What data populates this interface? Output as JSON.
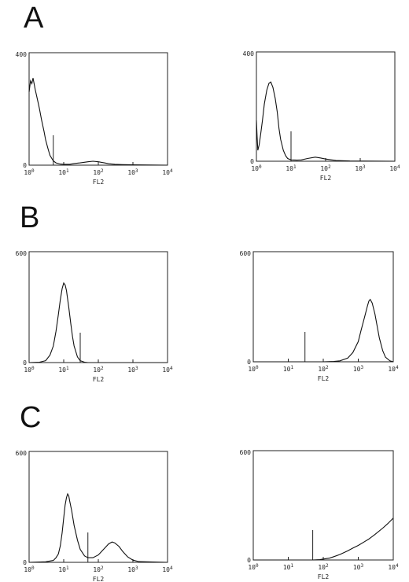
{
  "panels": [
    {
      "letter": "A"
    },
    {
      "letter": "B"
    },
    {
      "letter": "C"
    }
  ],
  "chart_data": [
    {
      "type": "line",
      "panel": "A",
      "position": "left",
      "xlabel": "FL2",
      "xscale": "log",
      "xlim": [
        1,
        10000
      ],
      "ylim": [
        0,
        400
      ],
      "y_ticks": [
        "0",
        "400"
      ],
      "x_ticks": [
        "10^0",
        "10^1",
        "10^2",
        "10^3",
        "10^4"
      ],
      "marker_x": 5,
      "x": [
        1,
        1.1,
        1.2,
        1.3,
        1.5,
        1.7,
        2,
        2.3,
        2.7,
        3,
        3.5,
        4,
        5,
        6,
        8,
        10,
        15,
        20,
        30,
        50,
        70,
        100,
        150,
        200,
        300,
        500,
        1000,
        10000
      ],
      "y": [
        260,
        300,
        290,
        310,
        270,
        240,
        200,
        160,
        120,
        90,
        60,
        35,
        15,
        8,
        4,
        3,
        3,
        6,
        8,
        12,
        14,
        12,
        8,
        5,
        3,
        2,
        1,
        0
      ]
    },
    {
      "type": "line",
      "panel": "A",
      "position": "right",
      "xlabel": "FL2",
      "xscale": "log",
      "xlim": [
        1,
        10000
      ],
      "ylim": [
        0,
        400
      ],
      "y_ticks": [
        "0",
        "400"
      ],
      "x_ticks": [
        "10^0",
        "10^1",
        "10^2",
        "10^3",
        "10^4"
      ],
      "marker_x": 10,
      "x": [
        1,
        1.05,
        1.1,
        1.2,
        1.3,
        1.5,
        1.7,
        2,
        2.3,
        2.6,
        3,
        3.5,
        4,
        4.5,
        5,
        6,
        7,
        8,
        10,
        15,
        20,
        30,
        50,
        70,
        100,
        150,
        200,
        500,
        10000
      ],
      "y": [
        150,
        90,
        40,
        60,
        90,
        150,
        210,
        260,
        285,
        290,
        270,
        230,
        180,
        120,
        80,
        40,
        20,
        10,
        5,
        4,
        5,
        10,
        15,
        12,
        8,
        5,
        3,
        1,
        0
      ]
    },
    {
      "type": "line",
      "panel": "B",
      "position": "left",
      "xlabel": "FL2",
      "xscale": "log",
      "xlim": [
        1,
        10000
      ],
      "ylim": [
        0,
        600
      ],
      "y_ticks": [
        "0",
        "600"
      ],
      "x_ticks": [
        "10^0",
        "10^1",
        "10^2",
        "10^3",
        "10^4"
      ],
      "marker_x": 30,
      "x": [
        1,
        2,
        3,
        4,
        5,
        6,
        7,
        8,
        9,
        10,
        11,
        12,
        14,
        16,
        18,
        20,
        25,
        30,
        40,
        50,
        100,
        10000
      ],
      "y": [
        0,
        2,
        10,
        40,
        90,
        170,
        260,
        340,
        400,
        430,
        420,
        390,
        300,
        210,
        140,
        90,
        30,
        10,
        2,
        0,
        0,
        0
      ]
    },
    {
      "type": "line",
      "panel": "B",
      "position": "right",
      "xlabel": "FL2",
      "xscale": "log",
      "xlim": [
        1,
        10000
      ],
      "ylim": [
        0,
        600
      ],
      "y_ticks": [
        "0",
        "600"
      ],
      "x_ticks": [
        "10^0",
        "10^1",
        "10^2",
        "10^3",
        "10^4"
      ],
      "marker_x": 30,
      "x": [
        1,
        100,
        200,
        300,
        500,
        700,
        1000,
        1200,
        1500,
        1800,
        2000,
        2200,
        2500,
        3000,
        3500,
        4000,
        5000,
        6000,
        8000,
        10000
      ],
      "y": [
        0,
        0,
        2,
        5,
        20,
        50,
        110,
        170,
        240,
        300,
        330,
        340,
        320,
        260,
        190,
        130,
        60,
        25,
        5,
        0
      ]
    },
    {
      "type": "line",
      "panel": "C",
      "position": "left",
      "xlabel": "FL2",
      "xscale": "log",
      "xlim": [
        1,
        10000
      ],
      "ylim": [
        0,
        600
      ],
      "y_ticks": [
        "0",
        "600"
      ],
      "x_ticks": [
        "10^0",
        "10^1",
        "10^2",
        "10^3",
        "10^4"
      ],
      "marker_x": 50,
      "x": [
        1,
        3,
        5,
        6,
        7,
        8,
        9,
        10,
        11,
        12,
        13,
        14,
        15,
        17,
        20,
        25,
        30,
        40,
        50,
        70,
        100,
        150,
        200,
        250,
        300,
        400,
        500,
        700,
        1000,
        1500,
        10000
      ],
      "y": [
        0,
        3,
        10,
        25,
        45,
        90,
        160,
        240,
        310,
        350,
        370,
        360,
        330,
        280,
        200,
        120,
        70,
        35,
        25,
        25,
        40,
        75,
        100,
        110,
        105,
        85,
        60,
        30,
        12,
        4,
        0
      ]
    },
    {
      "type": "line",
      "panel": "C",
      "position": "right",
      "xlabel": "FL2",
      "xscale": "log",
      "xlim": [
        1,
        10000
      ],
      "ylim": [
        0,
        600
      ],
      "y_ticks": [
        "0",
        "600"
      ],
      "x_ticks": [
        "10^0",
        "10^1",
        "10^2",
        "10^3",
        "10^4"
      ],
      "marker_x": 50,
      "x": [
        1,
        50,
        80,
        100,
        150,
        200,
        300,
        500,
        700,
        1000,
        1500,
        2000,
        3000,
        5000,
        7000,
        10000
      ],
      "y": [
        0,
        0,
        2,
        5,
        10,
        18,
        30,
        50,
        65,
        80,
        100,
        115,
        140,
        175,
        200,
        230
      ]
    }
  ]
}
